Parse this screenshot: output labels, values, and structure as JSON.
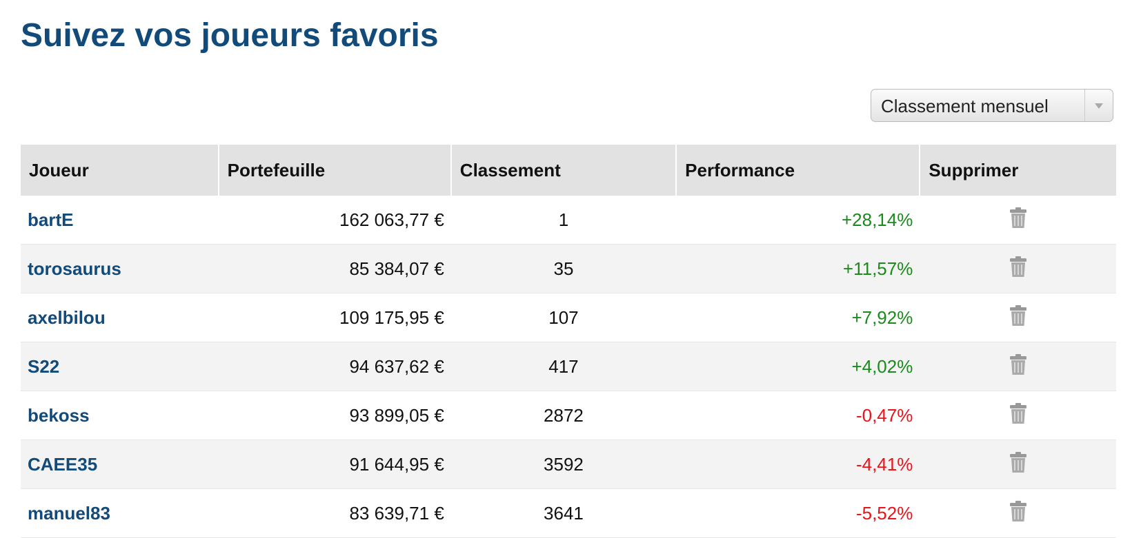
{
  "header": {
    "title": "Suivez vos joueurs favoris"
  },
  "filter": {
    "selected": "Classement mensuel"
  },
  "table": {
    "columns": [
      "Joueur",
      "Portefeuille",
      "Classement",
      "Performance",
      "Supprimer"
    ],
    "rows": [
      [
        "bartE",
        "162 063,77 €",
        "1",
        "+28,14%"
      ],
      [
        "torosaurus",
        "85 384,07 €",
        "35",
        "+11,57%"
      ],
      [
        "axelbilou",
        "109 175,95 €",
        "107",
        "+7,92%"
      ],
      [
        "S22",
        "94 637,62 €",
        "417",
        "+4,02%"
      ],
      [
        "bekoss",
        "93 899,05 €",
        "2872",
        "-0,47%"
      ],
      [
        "CAEE35",
        "91 644,95 €",
        "3592",
        "-4,41%"
      ],
      [
        "manuel83",
        "83 639,71 €",
        "3641",
        "-5,52%"
      ]
    ]
  }
}
